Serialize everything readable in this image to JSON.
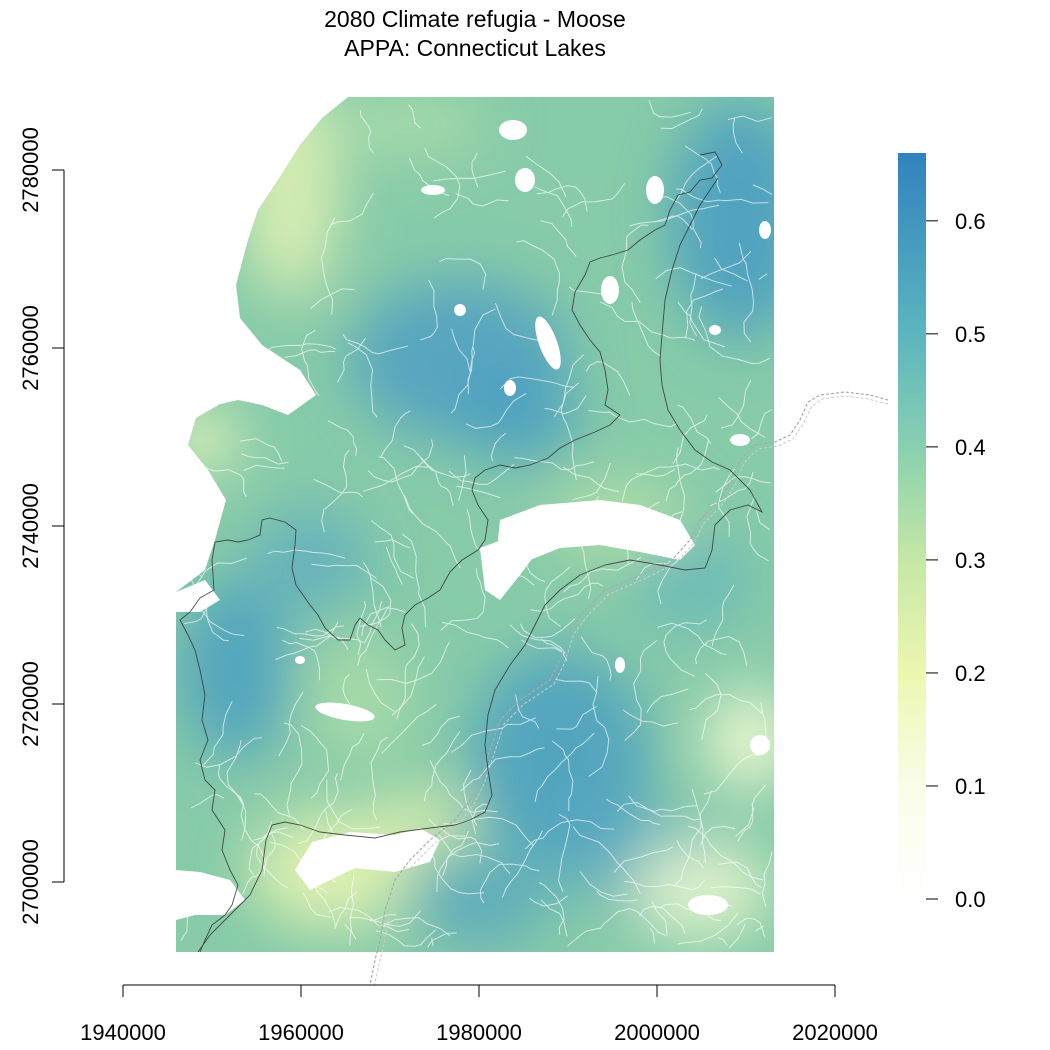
{
  "title_line1": "2080 Climate refugia - Moose",
  "title_line2": "APPA: Connecticut Lakes",
  "x_axis": {
    "ticks": [
      "1940000",
      "1960000",
      "1980000",
      "2000000",
      "2020000"
    ],
    "tick_values": [
      1940000,
      1960000,
      1980000,
      2000000,
      2020000
    ]
  },
  "y_axis": {
    "ticks": [
      "2700000",
      "2720000",
      "2740000",
      "2760000",
      "2780000"
    ],
    "tick_values": [
      2700000,
      2720000,
      2740000,
      2760000,
      2780000
    ]
  },
  "legend": {
    "ticks": [
      "0.0",
      "0.1",
      "0.2",
      "0.3",
      "0.4",
      "0.5",
      "0.6"
    ],
    "tick_values": [
      0.0,
      0.1,
      0.2,
      0.3,
      0.4,
      0.5,
      0.6
    ],
    "max_value": 0.66,
    "color_stops": [
      {
        "value": 0.0,
        "color": "#ffffff"
      },
      {
        "value": 0.1,
        "color": "#fafde8"
      },
      {
        "value": 0.2,
        "color": "#ecf7b0"
      },
      {
        "value": 0.3,
        "color": "#c5e8a5"
      },
      {
        "value": 0.4,
        "color": "#88d0b0"
      },
      {
        "value": 0.5,
        "color": "#5cb5bf"
      },
      {
        "value": 0.66,
        "color": "#3182bd"
      }
    ]
  },
  "colors": {
    "raster_base": "#87cba9",
    "high_suitability": "#4a9fc2",
    "low_suitability": "#e8f5b4",
    "boundary_line": "#333333",
    "river_line": "#aaaaaa"
  }
}
